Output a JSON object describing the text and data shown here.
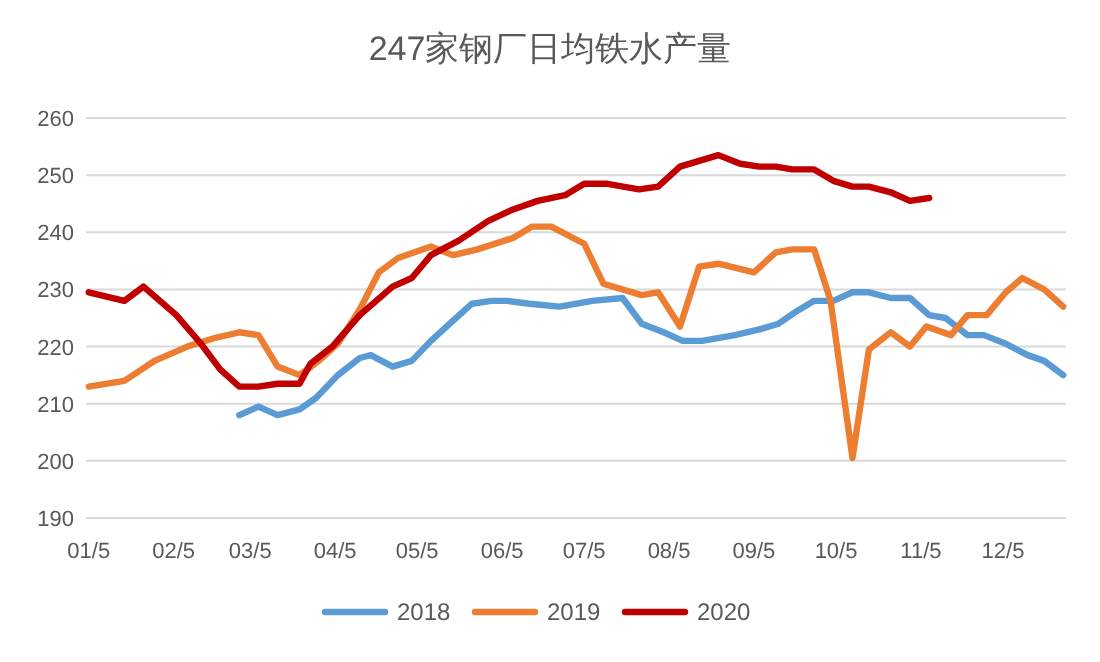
{
  "chart_data": {
    "type": "line",
    "title": "247家钢厂日均铁水产量",
    "xlim": [
      "--01-04",
      "--12-28"
    ],
    "xticks": [
      {
        "value": "--01-05",
        "label": "01/5"
      },
      {
        "value": "--02-05",
        "label": "02/5"
      },
      {
        "value": "--03-05",
        "label": "03/5"
      },
      {
        "value": "--04-05",
        "label": "04/5"
      },
      {
        "value": "--05-05",
        "label": "05/5"
      },
      {
        "value": "--06-05",
        "label": "06/5"
      },
      {
        "value": "--07-05",
        "label": "07/5"
      },
      {
        "value": "--08-05",
        "label": "08/5"
      },
      {
        "value": "--09-05",
        "label": "09/5"
      },
      {
        "value": "--10-05",
        "label": "10/5"
      },
      {
        "value": "--11-05",
        "label": "11/5"
      },
      {
        "value": "--12-05",
        "label": "12/5"
      }
    ],
    "ylim": [
      190,
      260
    ],
    "yticks": [
      190,
      200,
      210,
      220,
      230,
      240,
      250,
      260
    ],
    "grid": "y",
    "legend": "bottom",
    "series": [
      {
        "name": "2018",
        "color": "#5b9bd5",
        "x": [
          "--03-01",
          "--03-08",
          "--03-15",
          "--03-23",
          "--03-29",
          "--04-06",
          "--04-14",
          "--04-18",
          "--04-26",
          "--05-03",
          "--05-10",
          "--05-18",
          "--05-25",
          "--06-01",
          "--06-07",
          "--06-15",
          "--06-26",
          "--07-08",
          "--07-19",
          "--07-26",
          "--08-03",
          "--08-10",
          "--08-17",
          "--08-29",
          "--09-07",
          "--09-14",
          "--09-20",
          "--09-27",
          "--10-04",
          "--10-11",
          "--10-17",
          "--10-25",
          "--11-01",
          "--11-08",
          "--11-14",
          "--11-22",
          "--11-28",
          "--12-06",
          "--12-14",
          "--12-20",
          "--12-27"
        ],
        "values": [
          208,
          209.5,
          208,
          209,
          211,
          215,
          218,
          218.5,
          216.5,
          217.5,
          221,
          224.5,
          227.5,
          228,
          228,
          227.5,
          227,
          228,
          228.5,
          224,
          222.5,
          221,
          221,
          222,
          223,
          224,
          226,
          228,
          228,
          229.5,
          229.5,
          228.5,
          228.5,
          225.5,
          225,
          222,
          222,
          220.5,
          218.5,
          217.5,
          215
        ]
      },
      {
        "name": "2019",
        "color": "#ed7d31",
        "x": [
          "--01-05",
          "--01-18",
          "--01-29",
          "--02-10",
          "--02-20",
          "--03-01",
          "--03-08",
          "--03-15",
          "--03-23",
          "--03-30",
          "--04-06",
          "--04-14",
          "--04-21",
          "--04-28",
          "--05-10",
          "--05-18",
          "--05-27",
          "--06-09",
          "--06-16",
          "--06-23",
          "--07-05",
          "--07-12",
          "--07-26",
          "--08-01",
          "--08-09",
          "--08-16",
          "--08-23",
          "--09-05",
          "--09-13",
          "--09-19",
          "--09-27",
          "--10-03",
          "--10-11",
          "--10-17",
          "--10-25",
          "--11-01",
          "--11-07",
          "--11-16",
          "--11-22",
          "--11-29",
          "--12-06",
          "--12-12",
          "--12-20",
          "--12-27"
        ],
        "values": [
          213,
          214,
          217.5,
          220,
          221.5,
          222.5,
          222,
          216.5,
          215,
          217.5,
          220.5,
          226.5,
          233,
          235.5,
          237.5,
          236,
          237,
          239,
          241,
          241,
          238,
          231,
          229,
          229.5,
          223.5,
          234,
          234.5,
          233,
          236.5,
          237,
          237,
          228,
          200.5,
          219.5,
          222.5,
          220,
          223.5,
          222,
          225.5,
          225.5,
          229.5,
          232,
          230,
          227
        ]
      },
      {
        "name": "2020",
        "color": "#c00000",
        "x": [
          "--01-05",
          "--01-18",
          "--01-25",
          "--02-06",
          "--02-15",
          "--02-22",
          "--03-01",
          "--03-08",
          "--03-15",
          "--03-23",
          "--03-27",
          "--04-04",
          "--04-14",
          "--04-26",
          "--05-03",
          "--05-10",
          "--05-20",
          "--05-31",
          "--06-09",
          "--06-18",
          "--06-28",
          "--07-05",
          "--07-13",
          "--07-25",
          "--08-01",
          "--08-09",
          "--08-16",
          "--08-23",
          "--08-31",
          "--09-07",
          "--09-13",
          "--09-19",
          "--09-27",
          "--10-04",
          "--10-11",
          "--10-17",
          "--10-25",
          "--11-01",
          "--11-08"
        ],
        "values": [
          229.5,
          228,
          230.5,
          225.5,
          220.5,
          216,
          213,
          213,
          213.5,
          213.5,
          217,
          220,
          225.5,
          230.5,
          232,
          236,
          238.5,
          242,
          244,
          245.5,
          246.5,
          248.5,
          248.5,
          247.5,
          248,
          251.5,
          252.5,
          253.5,
          252,
          251.5,
          251.5,
          251,
          251,
          249,
          248,
          248,
          247,
          245.5,
          246
        ]
      }
    ]
  }
}
